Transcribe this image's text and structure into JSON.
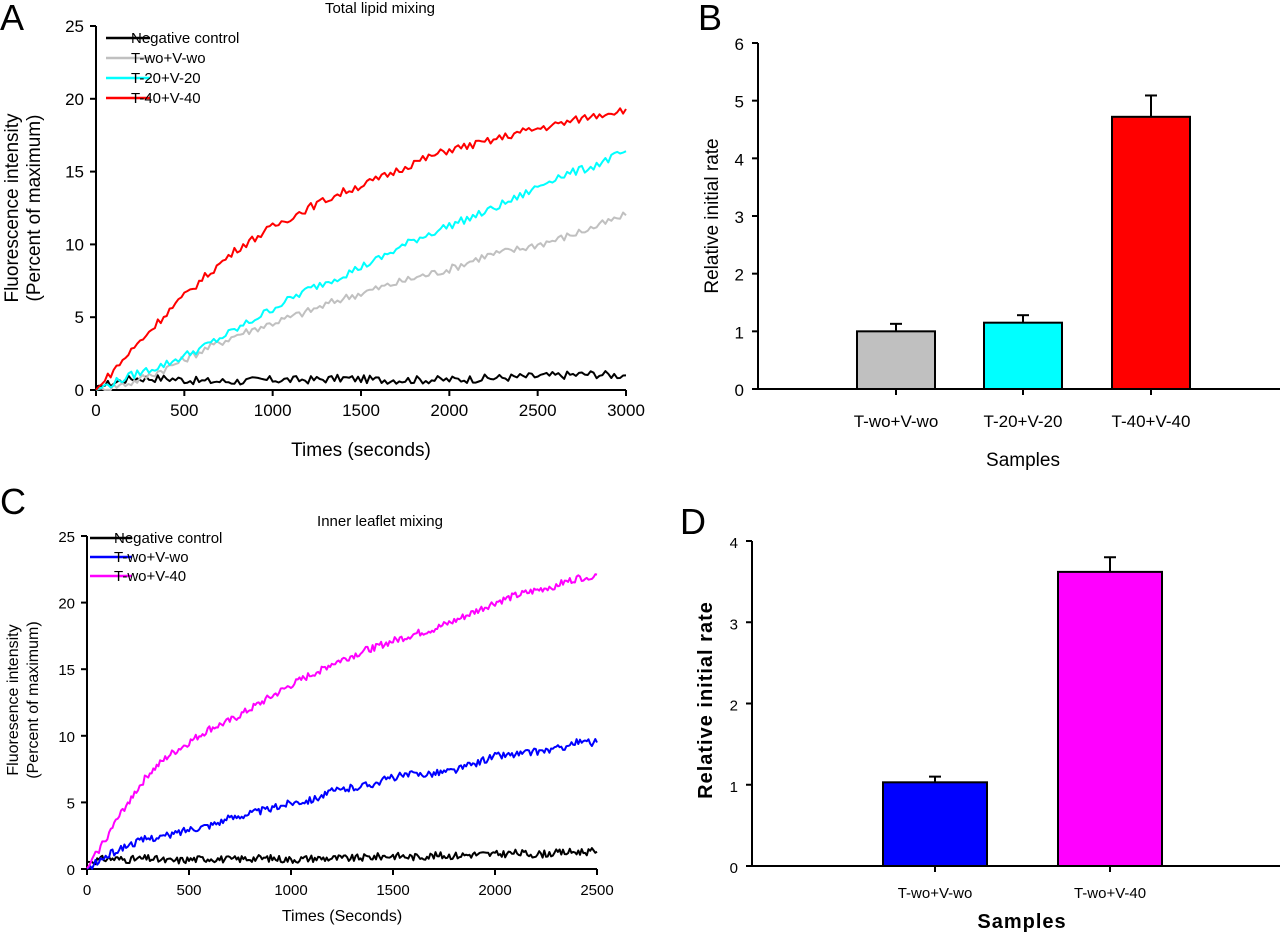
{
  "chart_data": [
    {
      "id": "A",
      "panel_label": "A",
      "type": "line",
      "title": "Total lipid mixing",
      "xlabel": "Times (seconds)",
      "ylabel": [
        "Fluorescence intensity",
        "(Percent of maximum)"
      ],
      "xlim": [
        0,
        3000
      ],
      "ylim": [
        0,
        25
      ],
      "xticks": [
        0,
        500,
        1000,
        1500,
        2000,
        2500,
        3000
      ],
      "yticks": [
        0,
        5,
        10,
        15,
        20,
        25
      ],
      "grid": false,
      "legend_position": "top-left",
      "x": [
        0,
        200,
        400,
        600,
        800,
        1000,
        1200,
        1400,
        1600,
        1800,
        2000,
        2200,
        2400,
        2600,
        2800,
        3000
      ],
      "series": [
        {
          "name": "Negative control",
          "color": "#000000",
          "values": [
            0.2,
            0.8,
            0.8,
            0.6,
            0.6,
            0.7,
            0.7,
            0.8,
            0.7,
            0.7,
            0.7,
            0.8,
            0.9,
            1.0,
            1.1,
            1.0
          ]
        },
        {
          "name": "T-wo+V-wo",
          "color": "#c0c0c0",
          "values": [
            0.0,
            0.5,
            1.5,
            2.7,
            3.8,
            4.6,
            5.4,
            6.3,
            7.0,
            7.7,
            8.3,
            9.2,
            9.7,
            10.3,
            11.1,
            12.0
          ]
        },
        {
          "name": "T-20+V-20",
          "color": "#00ffff",
          "values": [
            0.0,
            1.0,
            1.8,
            2.9,
            4.2,
            5.6,
            6.9,
            7.9,
            9.0,
            10.3,
            11.3,
            12.2,
            13.3,
            14.6,
            15.3,
            16.4
          ]
        },
        {
          "name": "T-40+V-40",
          "color": "#ff0000",
          "values": [
            0.0,
            2.7,
            5.3,
            7.6,
            9.7,
            11.2,
            12.5,
            13.6,
            14.5,
            15.6,
            16.5,
            17.0,
            17.7,
            18.2,
            18.8,
            19.3
          ]
        }
      ]
    },
    {
      "id": "B",
      "panel_label": "B",
      "type": "bar",
      "title": "",
      "xlabel": "Samples",
      "ylabel": "Relative initial rate",
      "ylim": [
        0,
        6
      ],
      "yticks": [
        0,
        1,
        2,
        3,
        4,
        5,
        6
      ],
      "grid": false,
      "categories": [
        "T-wo+V-wo",
        "T-20+V-20",
        "T-40+V-40"
      ],
      "values": [
        1.0,
        1.15,
        4.72
      ],
      "errors": [
        0.13,
        0.13,
        0.37
      ],
      "colors": [
        "#c0c0c0",
        "#00ffff",
        "#ff0000"
      ]
    },
    {
      "id": "C",
      "panel_label": "C",
      "type": "line",
      "title": "Inner leaflet mixing",
      "xlabel": "Times (Seconds)",
      "ylabel": [
        "Fluoresence intensity",
        "(Percent of maximum)"
      ],
      "xlim": [
        0,
        2500
      ],
      "ylim": [
        0,
        25
      ],
      "xticks": [
        0,
        500,
        1000,
        1500,
        2000,
        2500
      ],
      "yticks": [
        0,
        5,
        10,
        15,
        20,
        25
      ],
      "grid": false,
      "legend_position": "top-left",
      "x": [
        0,
        100,
        200,
        300,
        400,
        500,
        600,
        700,
        800,
        900,
        1000,
        1100,
        1200,
        1300,
        1400,
        1500,
        1600,
        1700,
        1800,
        1900,
        2000,
        2100,
        2200,
        2300,
        2400,
        2500
      ],
      "series": [
        {
          "name": "Negative control",
          "color": "#000000",
          "values": [
            0.5,
            0.8,
            0.7,
            0.8,
            0.6,
            0.7,
            0.8,
            0.7,
            0.8,
            0.8,
            0.7,
            0.8,
            0.8,
            0.8,
            0.9,
            1.0,
            0.9,
            1.0,
            1.0,
            1.1,
            1.1,
            1.2,
            1.1,
            1.2,
            1.3,
            1.3
          ]
        },
        {
          "name": "T-wo+V-wo",
          "color": "#0000ff",
          "values": [
            0.0,
            1.0,
            1.8,
            2.3,
            2.5,
            3.0,
            3.3,
            3.8,
            4.2,
            4.5,
            5.0,
            5.2,
            5.8,
            6.1,
            6.4,
            6.9,
            7.1,
            7.2,
            7.4,
            7.9,
            8.5,
            8.6,
            8.8,
            9.0,
            9.5,
            9.5
          ]
        },
        {
          "name": "T-wo+V-40",
          "color": "#ff00ff",
          "values": [
            0.0,
            2.5,
            5.0,
            7.1,
            8.5,
            9.5,
            10.5,
            11.1,
            12.0,
            12.9,
            13.8,
            14.6,
            15.4,
            16.0,
            16.6,
            17.1,
            17.6,
            18.0,
            18.6,
            19.3,
            20.0,
            20.5,
            20.9,
            21.3,
            21.8,
            22.1
          ]
        }
      ]
    },
    {
      "id": "D",
      "panel_label": "D",
      "type": "bar",
      "title": "",
      "xlabel": "Samples",
      "ylabel": "Relative initial rate",
      "ylim": [
        0,
        4
      ],
      "yticks": [
        0,
        1,
        2,
        3,
        4
      ],
      "grid": false,
      "categories": [
        "T-wo+V-wo",
        "T-wo+V-40"
      ],
      "values": [
        1.03,
        3.62
      ],
      "errors": [
        0.07,
        0.18
      ],
      "colors": [
        "#0000ff",
        "#ff00ff"
      ]
    }
  ]
}
